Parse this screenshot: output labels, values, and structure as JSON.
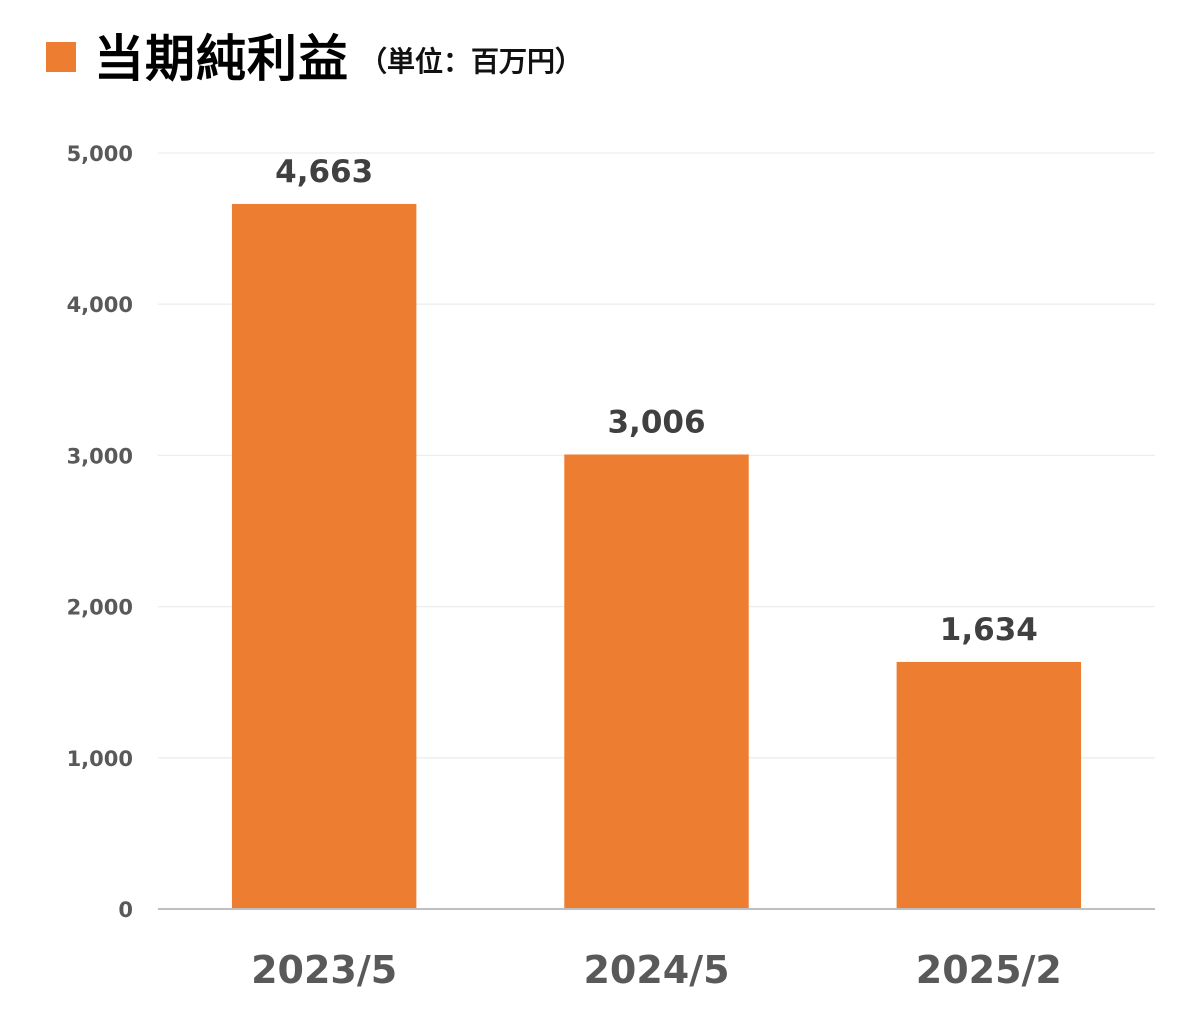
{
  "title": "当期純利益",
  "unit": "（単位：百万円）",
  "colors": {
    "bar": "#ED7D31",
    "grid": "#EDEDED",
    "axis": "#BFBFBF",
    "marker": "#ED7D31"
  },
  "chart_data": {
    "type": "bar",
    "title": "当期純利益",
    "unit": "（単位：百万円）",
    "categories": [
      "2023/5",
      "2024/5",
      "2025/2"
    ],
    "values": [
      4663,
      3006,
      1634
    ],
    "value_labels": [
      "4,663",
      "3,006",
      "1,634"
    ],
    "ylim": [
      0,
      5000
    ],
    "yticks": [
      0,
      1000,
      2000,
      3000,
      4000,
      5000
    ],
    "ytick_labels": [
      "0",
      "1,000",
      "2,000",
      "3,000",
      "4,000",
      "5,000"
    ],
    "grid": true,
    "legend": "none"
  }
}
